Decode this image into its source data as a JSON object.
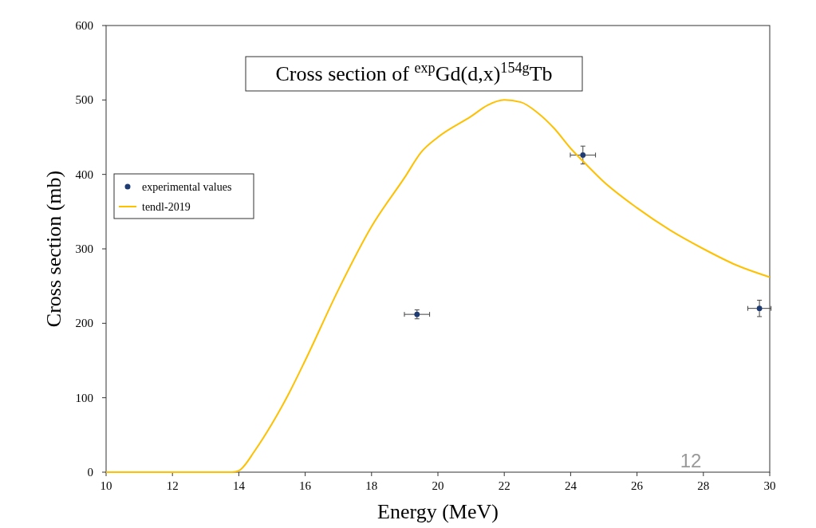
{
  "chart_data": {
    "type": "scatter",
    "title": "Cross section of $^{exp}$Gd(d,x)$^{154g}$Tb",
    "xlabel": "Energy (MeV)",
    "ylabel": "Cross section (mb)",
    "xlim": [
      10,
      30
    ],
    "xticks": [
      10,
      12,
      14,
      16,
      18,
      20,
      22,
      24,
      26,
      28,
      30
    ],
    "ylim": [
      0,
      600
    ],
    "yticks": [
      0,
      100,
      200,
      300,
      400,
      500,
      600
    ],
    "grid": false,
    "legend": "left",
    "annotations": [
      "12"
    ],
    "series": [
      {
        "name": "experimental values",
        "color": "#1f3b73",
        "marker": "circle",
        "x": [
          19.37,
          24.37,
          29.69
        ],
        "values": [
          212,
          426,
          220
        ],
        "errors": [
          6,
          12,
          11
        ],
        "xerrors": [
          0.38,
          0.38,
          0.35
        ]
      },
      {
        "name": "tendl-2019",
        "type": "line",
        "color": "#ffc000",
        "marker": "none",
        "x": [
          10,
          12,
          13,
          13.8,
          14,
          14.5,
          15,
          15.5,
          16,
          17,
          18,
          19,
          19.5,
          20,
          21,
          21.5,
          22,
          22.5,
          23,
          23.5,
          24,
          24.5,
          25,
          26,
          27,
          28,
          29,
          30
        ],
        "values": [
          0,
          0,
          0,
          0,
          2,
          30,
          65,
          105,
          150,
          245,
          330,
          396,
          430,
          450,
          478,
          493,
          500,
          497,
          483,
          462,
          435,
          412,
          390,
          355,
          325,
          300,
          278,
          262
        ]
      }
    ]
  }
}
